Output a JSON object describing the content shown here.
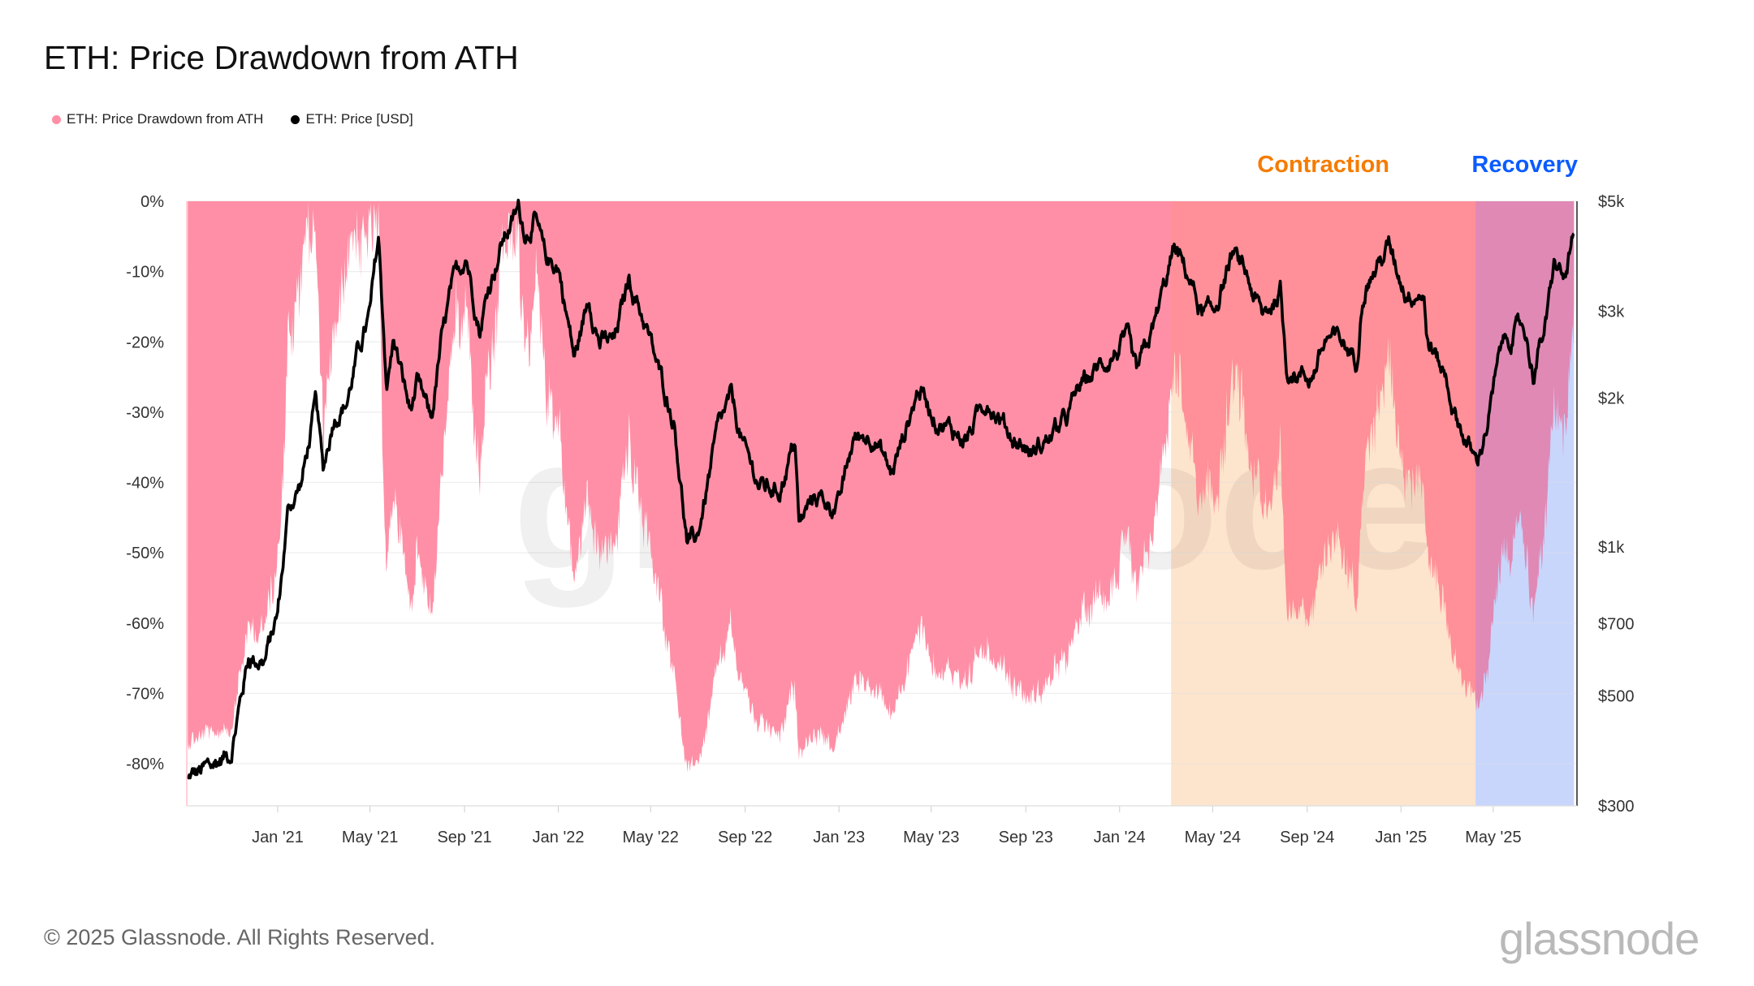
{
  "title": "ETH: Price Drawdown from ATH",
  "footer": "© 2025 Glassnode. All Rights Reserved.",
  "logo_text": "glassnode",
  "watermark_text": "glassnode",
  "chart_data": {
    "type": "area+line",
    "title": "ETH: Price Drawdown from ATH",
    "legend": [
      {
        "name": "ETH: Price Drawdown from ATH",
        "color": "#ff8fa6"
      },
      {
        "name": "ETH: Price [USD]",
        "color": "#000000"
      }
    ],
    "legend_position": "top-left",
    "grid": true,
    "x_range": [
      "2020-09-06",
      "2025-08-14"
    ],
    "x_ticks": [
      {
        "date": "2021-01-01",
        "label": "Jan '21"
      },
      {
        "date": "2021-05-01",
        "label": "May '21"
      },
      {
        "date": "2021-09-01",
        "label": "Sep '21"
      },
      {
        "date": "2022-01-01",
        "label": "Jan '22"
      },
      {
        "date": "2022-05-01",
        "label": "May '22"
      },
      {
        "date": "2022-09-01",
        "label": "Sep '22"
      },
      {
        "date": "2023-01-01",
        "label": "Jan '23"
      },
      {
        "date": "2023-05-01",
        "label": "May '23"
      },
      {
        "date": "2023-09-01",
        "label": "Sep '23"
      },
      {
        "date": "2024-01-01",
        "label": "Jan '24"
      },
      {
        "date": "2024-05-01",
        "label": "May '24"
      },
      {
        "date": "2024-09-01",
        "label": "Sep '24"
      },
      {
        "date": "2025-01-01",
        "label": "Jan '25"
      },
      {
        "date": "2025-05-01",
        "label": "May '25"
      }
    ],
    "y_left": {
      "range": [
        -86,
        0
      ],
      "ticks": [
        {
          "v": 0,
          "label": "0%"
        },
        {
          "v": -10,
          "label": "-10%"
        },
        {
          "v": -20,
          "label": "-20%"
        },
        {
          "v": -30,
          "label": "-30%"
        },
        {
          "v": -40,
          "label": "-40%"
        },
        {
          "v": -50,
          "label": "-50%"
        },
        {
          "v": -60,
          "label": "-60%"
        },
        {
          "v": -70,
          "label": "-70%"
        },
        {
          "v": -80,
          "label": "-80%"
        }
      ]
    },
    "y_right": {
      "scale": "log",
      "range": [
        300,
        5000
      ],
      "ticks": [
        {
          "v": 5000,
          "label": "$5k"
        },
        {
          "v": 3000,
          "label": "$3k"
        },
        {
          "v": 2000,
          "label": "$2k"
        },
        {
          "v": 1000,
          "label": "$1k"
        },
        {
          "v": 700,
          "label": "$700"
        },
        {
          "v": 500,
          "label": "$500"
        },
        {
          "v": 300,
          "label": "$300"
        }
      ]
    },
    "phases": [
      {
        "label": "Contraction",
        "start": "2024-03-08",
        "end": "2025-04-08",
        "color": "#f57c00",
        "band": "#fdf0e2"
      },
      {
        "label": "Recovery",
        "start": "2025-04-08",
        "end": "2025-08-14",
        "color": "#0b5cff",
        "band": "#e3ebfc"
      }
    ],
    "price_series": [
      [
        "2020-09-06",
        340
      ],
      [
        "2020-10-01",
        355
      ],
      [
        "2020-11-01",
        385
      ],
      [
        "2020-11-24",
        600
      ],
      [
        "2020-12-15",
        590
      ],
      [
        "2021-01-01",
        730
      ],
      [
        "2021-01-15",
        1200
      ],
      [
        "2021-02-01",
        1350
      ],
      [
        "2021-02-20",
        1950
      ],
      [
        "2021-03-01",
        1420
      ],
      [
        "2021-03-15",
        1850
      ],
      [
        "2021-04-01",
        1970
      ],
      [
        "2021-04-15",
        2450
      ],
      [
        "2021-05-01",
        2950
      ],
      [
        "2021-05-12",
        4200
      ],
      [
        "2021-05-23",
        2100
      ],
      [
        "2021-06-01",
        2630
      ],
      [
        "2021-06-22",
        1880
      ],
      [
        "2021-07-01",
        2110
      ],
      [
        "2021-07-20",
        1800
      ],
      [
        "2021-08-01",
        2540
      ],
      [
        "2021-08-15",
        3300
      ],
      [
        "2021-09-03",
        3940
      ],
      [
        "2021-09-21",
        2760
      ],
      [
        "2021-10-01",
        3300
      ],
      [
        "2021-10-20",
        4150
      ],
      [
        "2021-11-10",
        4810
      ],
      [
        "2021-11-20",
        4300
      ],
      [
        "2021-12-01",
        4630
      ],
      [
        "2021-12-15",
        3800
      ],
      [
        "2022-01-01",
        3700
      ],
      [
        "2022-01-22",
        2400
      ],
      [
        "2022-02-10",
        3200
      ],
      [
        "2022-02-24",
        2600
      ],
      [
        "2022-03-15",
        2600
      ],
      [
        "2022-04-03",
        3500
      ],
      [
        "2022-04-25",
        2800
      ],
      [
        "2022-05-10",
        2300
      ],
      [
        "2022-06-01",
        1800
      ],
      [
        "2022-06-18",
        1000
      ],
      [
        "2022-07-01",
        1050
      ],
      [
        "2022-07-28",
        1730
      ],
      [
        "2022-08-14",
        1990
      ],
      [
        "2022-09-01",
        1550
      ],
      [
        "2022-09-20",
        1330
      ],
      [
        "2022-10-15",
        1300
      ],
      [
        "2022-11-05",
        1640
      ],
      [
        "2022-11-10",
        1100
      ],
      [
        "2022-12-01",
        1280
      ],
      [
        "2022-12-31",
        1200
      ],
      [
        "2023-01-20",
        1650
      ],
      [
        "2023-02-15",
        1700
      ],
      [
        "2023-03-10",
        1400
      ],
      [
        "2023-04-15",
        2100
      ],
      [
        "2023-05-10",
        1800
      ],
      [
        "2023-06-15",
        1650
      ],
      [
        "2023-07-13",
        2000
      ],
      [
        "2023-08-17",
        1650
      ],
      [
        "2023-09-11",
        1550
      ],
      [
        "2023-10-23",
        1800
      ],
      [
        "2023-11-10",
        2100
      ],
      [
        "2023-12-10",
        2350
      ],
      [
        "2024-01-11",
        2600
      ],
      [
        "2024-01-23",
        2200
      ],
      [
        "2024-02-15",
        2800
      ],
      [
        "2024-03-12",
        4000
      ],
      [
        "2024-04-01",
        3500
      ],
      [
        "2024-04-17",
        2950
      ],
      [
        "2024-05-01",
        2950
      ],
      [
        "2024-05-27",
        3900
      ],
      [
        "2024-06-15",
        3500
      ],
      [
        "2024-07-05",
        2900
      ],
      [
        "2024-07-28",
        3300
      ],
      [
        "2024-08-05",
        2300
      ],
      [
        "2024-09-06",
        2200
      ],
      [
        "2024-09-27",
        2650
      ],
      [
        "2024-10-15",
        2600
      ],
      [
        "2024-11-04",
        2400
      ],
      [
        "2024-11-12",
        3300
      ],
      [
        "2024-12-16",
        4050
      ],
      [
        "2025-01-07",
        3300
      ],
      [
        "2025-01-31",
        3300
      ],
      [
        "2025-02-03",
        2650
      ],
      [
        "2025-03-01",
        2200
      ],
      [
        "2025-03-11",
        1880
      ],
      [
        "2025-04-09",
        1470
      ],
      [
        "2025-04-24",
        1800
      ],
      [
        "2025-05-13",
        2600
      ],
      [
        "2025-06-10",
        2800
      ],
      [
        "2025-06-22",
        2250
      ],
      [
        "2025-07-10",
        2900
      ],
      [
        "2025-07-20",
        3750
      ],
      [
        "2025-08-02",
        3450
      ],
      [
        "2025-08-14",
        4300
      ]
    ]
  }
}
